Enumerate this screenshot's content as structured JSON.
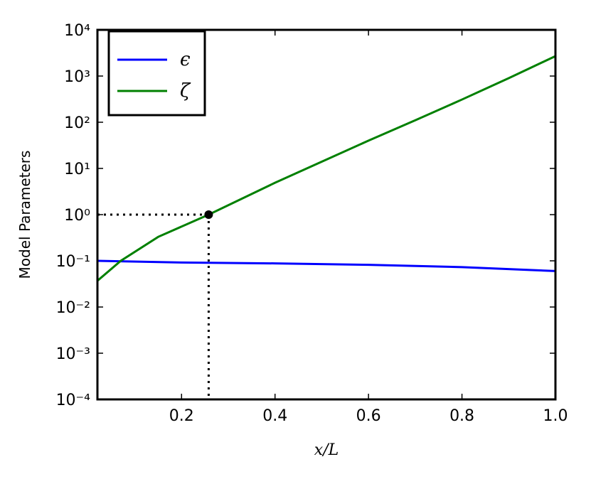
{
  "chart_data": {
    "type": "line",
    "xlabel": "x/L",
    "ylabel": "Model Parameters",
    "xlim": [
      0.02,
      1.0
    ],
    "xticks": [
      0.2,
      0.4,
      0.6,
      0.8,
      {
        "value": 1.0,
        "label": "1.0"
      }
    ],
    "ylim": [
      0.0001,
      10000
    ],
    "log_y": true,
    "yticks": [
      {
        "value": 0.0001,
        "label": "10⁻⁴"
      },
      {
        "value": 0.001,
        "label": "10⁻³"
      },
      {
        "value": 0.01,
        "label": "10⁻²"
      },
      {
        "value": 0.1,
        "label": "10⁻¹"
      },
      {
        "value": 1,
        "label": "10⁰"
      },
      {
        "value": 10,
        "label": "10¹"
      },
      {
        "value": 100,
        "label": "10²"
      },
      {
        "value": 1000,
        "label": "10³"
      },
      {
        "value": 10000,
        "label": "10⁴"
      }
    ],
    "legend": "upper left",
    "series": [
      {
        "name": "ϵ",
        "color": "#0000ff",
        "x": [
          0.02,
          0.2,
          0.4,
          0.6,
          0.8,
          1.0
        ],
        "values": [
          0.1,
          0.092,
          0.088,
          0.082,
          0.073,
          0.06
        ]
      },
      {
        "name": "ζ",
        "color": "#008000",
        "x": [
          0.02,
          0.07,
          0.15,
          0.258,
          0.4,
          0.5,
          0.6,
          0.7,
          0.8,
          0.9,
          1.0
        ],
        "values": [
          0.037,
          0.1,
          0.33,
          1.0,
          4.9,
          14,
          40,
          110,
          310,
          900,
          2700
        ]
      }
    ],
    "marker": {
      "x": 0.258,
      "y": 1
    }
  }
}
